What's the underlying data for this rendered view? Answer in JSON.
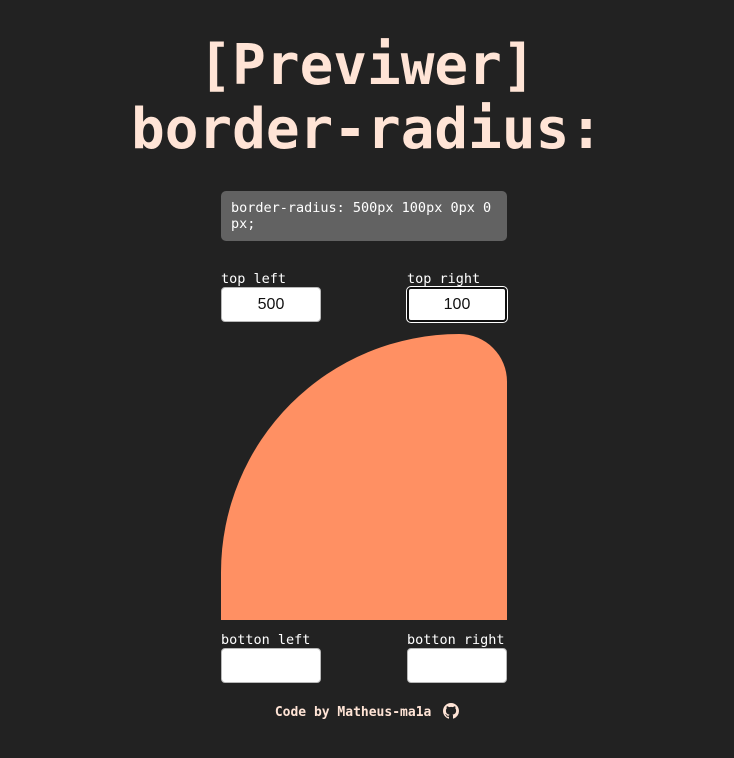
{
  "header": {
    "title_line1": "[Previwer]",
    "title_line2": "border-radius:"
  },
  "code": {
    "text": "border-radius: 500px 100px 0px 0px;"
  },
  "fields": {
    "top_left": {
      "label": "top left",
      "value": "500"
    },
    "top_right": {
      "label": "top right",
      "value": "100"
    },
    "bottom_left": {
      "label": "botton left",
      "value": ""
    },
    "bottom_right": {
      "label": "botton right",
      "value": ""
    }
  },
  "preview": {
    "color": "#ff9063",
    "radius_top_left_px": 500,
    "radius_top_right_px": 100,
    "radius_bottom_right_px": 0,
    "radius_bottom_left_px": 0
  },
  "footer": {
    "text": "Code by Matheus-ma1a",
    "icon": "github-icon"
  },
  "colors": {
    "background": "#222222",
    "title": "#ffe4d6",
    "code_box": "#626262"
  }
}
